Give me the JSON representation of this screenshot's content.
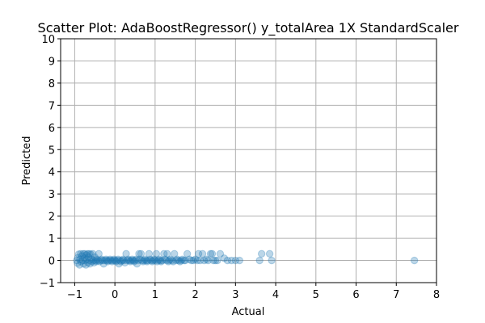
{
  "chart_data": {
    "type": "scatter",
    "title": "Scatter Plot: AdaBoostRegressor() y_totalArea 1X StandardScaler",
    "xlabel": "Actual",
    "ylabel": "Predicted",
    "xlim": [
      -1.35,
      8.0
    ],
    "ylim": [
      -1,
      10
    ],
    "xticks": [
      -1,
      0,
      1,
      2,
      3,
      4,
      5,
      6,
      7,
      8
    ],
    "xtick_labels": [
      "−1",
      "0",
      "1",
      "2",
      "3",
      "4",
      "5",
      "6",
      "7",
      "8"
    ],
    "yticks": [
      -1,
      0,
      1,
      2,
      3,
      4,
      5,
      6,
      7,
      8,
      9,
      10
    ],
    "ytick_labels": [
      "−1",
      "0",
      "1",
      "2",
      "3",
      "4",
      "5",
      "6",
      "7",
      "8",
      "9",
      "10"
    ],
    "grid": true,
    "marker_color": "#1f77b4",
    "marker_alpha": 0.3,
    "points": [
      [
        -0.95,
        0.0
      ],
      [
        -0.93,
        -0.12
      ],
      [
        -0.92,
        0.12
      ],
      [
        -0.9,
        0.28
      ],
      [
        -0.88,
        -0.2
      ],
      [
        -0.87,
        0.05
      ],
      [
        -0.85,
        0.3
      ],
      [
        -0.84,
        -0.05
      ],
      [
        -0.82,
        0.2
      ],
      [
        -0.8,
        0.0
      ],
      [
        -0.79,
        0.3
      ],
      [
        -0.78,
        -0.15
      ],
      [
        -0.76,
        0.1
      ],
      [
        -0.75,
        0.3
      ],
      [
        -0.74,
        0.0
      ],
      [
        -0.72,
        -0.2
      ],
      [
        -0.71,
        0.25
      ],
      [
        -0.7,
        0.05
      ],
      [
        -0.68,
        0.3
      ],
      [
        -0.67,
        -0.1
      ],
      [
        -0.66,
        0.15
      ],
      [
        -0.64,
        0.3
      ],
      [
        -0.63,
        0.0
      ],
      [
        -0.62,
        -0.15
      ],
      [
        -0.6,
        0.28
      ],
      [
        -0.58,
        0.05
      ],
      [
        -0.57,
        -0.05
      ],
      [
        -0.55,
        0.3
      ],
      [
        -0.53,
        0.0
      ],
      [
        -0.52,
        -0.1
      ],
      [
        -0.5,
        0.15
      ],
      [
        -0.48,
        0.0
      ],
      [
        -0.46,
        -0.05
      ],
      [
        -0.45,
        0.05
      ],
      [
        -0.42,
        0.0
      ],
      [
        -0.4,
        0.3
      ],
      [
        -0.38,
        -0.05
      ],
      [
        -0.35,
        0.0
      ],
      [
        -0.33,
        0.05
      ],
      [
        -0.3,
        0.0
      ],
      [
        -0.28,
        -0.15
      ],
      [
        -0.25,
        0.0
      ],
      [
        -0.22,
        0.05
      ],
      [
        -0.2,
        0.0
      ],
      [
        -0.18,
        -0.05
      ],
      [
        -0.15,
        0.0
      ],
      [
        -0.12,
        0.05
      ],
      [
        -0.1,
        0.0
      ],
      [
        -0.07,
        -0.05
      ],
      [
        -0.05,
        0.0
      ],
      [
        -0.02,
        0.05
      ],
      [
        0.0,
        0.0
      ],
      [
        0.03,
        -0.05
      ],
      [
        0.05,
        0.0
      ],
      [
        0.08,
        0.05
      ],
      [
        0.1,
        -0.15
      ],
      [
        0.12,
        0.0
      ],
      [
        0.15,
        -0.05
      ],
      [
        0.18,
        0.0
      ],
      [
        0.2,
        0.05
      ],
      [
        0.22,
        0.0
      ],
      [
        0.25,
        -0.1
      ],
      [
        0.28,
        0.3
      ],
      [
        0.3,
        0.0
      ],
      [
        0.33,
        0.05
      ],
      [
        0.35,
        0.0
      ],
      [
        0.38,
        -0.05
      ],
      [
        0.4,
        0.0
      ],
      [
        0.43,
        0.05
      ],
      [
        0.45,
        0.0
      ],
      [
        0.48,
        -0.05
      ],
      [
        0.5,
        0.0
      ],
      [
        0.53,
        0.05
      ],
      [
        0.55,
        -0.15
      ],
      [
        0.58,
        0.0
      ],
      [
        0.6,
        0.3
      ],
      [
        0.62,
        0.05
      ],
      [
        0.65,
        0.3
      ],
      [
        0.67,
        0.0
      ],
      [
        0.7,
        -0.05
      ],
      [
        0.72,
        0.0
      ],
      [
        0.75,
        0.05
      ],
      [
        0.78,
        0.0
      ],
      [
        0.8,
        -0.05
      ],
      [
        0.82,
        0.0
      ],
      [
        0.85,
        0.3
      ],
      [
        0.88,
        0.05
      ],
      [
        0.9,
        0.0
      ],
      [
        0.93,
        -0.05
      ],
      [
        0.95,
        0.0
      ],
      [
        0.98,
        0.05
      ],
      [
        1.0,
        0.0
      ],
      [
        1.03,
        0.3
      ],
      [
        1.05,
        -0.05
      ],
      [
        1.08,
        0.0
      ],
      [
        1.1,
        0.05
      ],
      [
        1.13,
        0.0
      ],
      [
        1.15,
        -0.05
      ],
      [
        1.18,
        0.0
      ],
      [
        1.22,
        0.3
      ],
      [
        1.25,
        0.05
      ],
      [
        1.28,
        0.0
      ],
      [
        1.3,
        0.3
      ],
      [
        1.33,
        -0.05
      ],
      [
        1.35,
        0.0
      ],
      [
        1.38,
        0.05
      ],
      [
        1.42,
        0.0
      ],
      [
        1.45,
        -0.05
      ],
      [
        1.48,
        0.3
      ],
      [
        1.52,
        0.0
      ],
      [
        1.55,
        0.05
      ],
      [
        1.58,
        0.0
      ],
      [
        1.62,
        -0.05
      ],
      [
        1.65,
        0.0
      ],
      [
        1.68,
        0.05
      ],
      [
        1.72,
        0.0
      ],
      [
        1.75,
        0.0
      ],
      [
        1.8,
        0.3
      ],
      [
        1.85,
        0.05
      ],
      [
        1.9,
        0.0
      ],
      [
        1.95,
        0.0
      ],
      [
        2.0,
        0.05
      ],
      [
        2.05,
        0.0
      ],
      [
        2.08,
        0.3
      ],
      [
        2.12,
        0.0
      ],
      [
        2.18,
        0.3
      ],
      [
        2.22,
        0.0
      ],
      [
        2.28,
        0.05
      ],
      [
        2.32,
        0.0
      ],
      [
        2.38,
        0.3
      ],
      [
        2.42,
        0.3
      ],
      [
        2.45,
        0.0
      ],
      [
        2.5,
        0.0
      ],
      [
        2.55,
        0.0
      ],
      [
        2.62,
        0.3
      ],
      [
        2.72,
        0.1
      ],
      [
        2.8,
        0.0
      ],
      [
        2.9,
        0.0
      ],
      [
        3.0,
        0.0
      ],
      [
        3.1,
        0.0
      ],
      [
        3.6,
        0.0
      ],
      [
        3.65,
        0.3
      ],
      [
        3.85,
        0.3
      ],
      [
        3.9,
        0.0
      ],
      [
        7.45,
        0.0
      ]
    ]
  }
}
